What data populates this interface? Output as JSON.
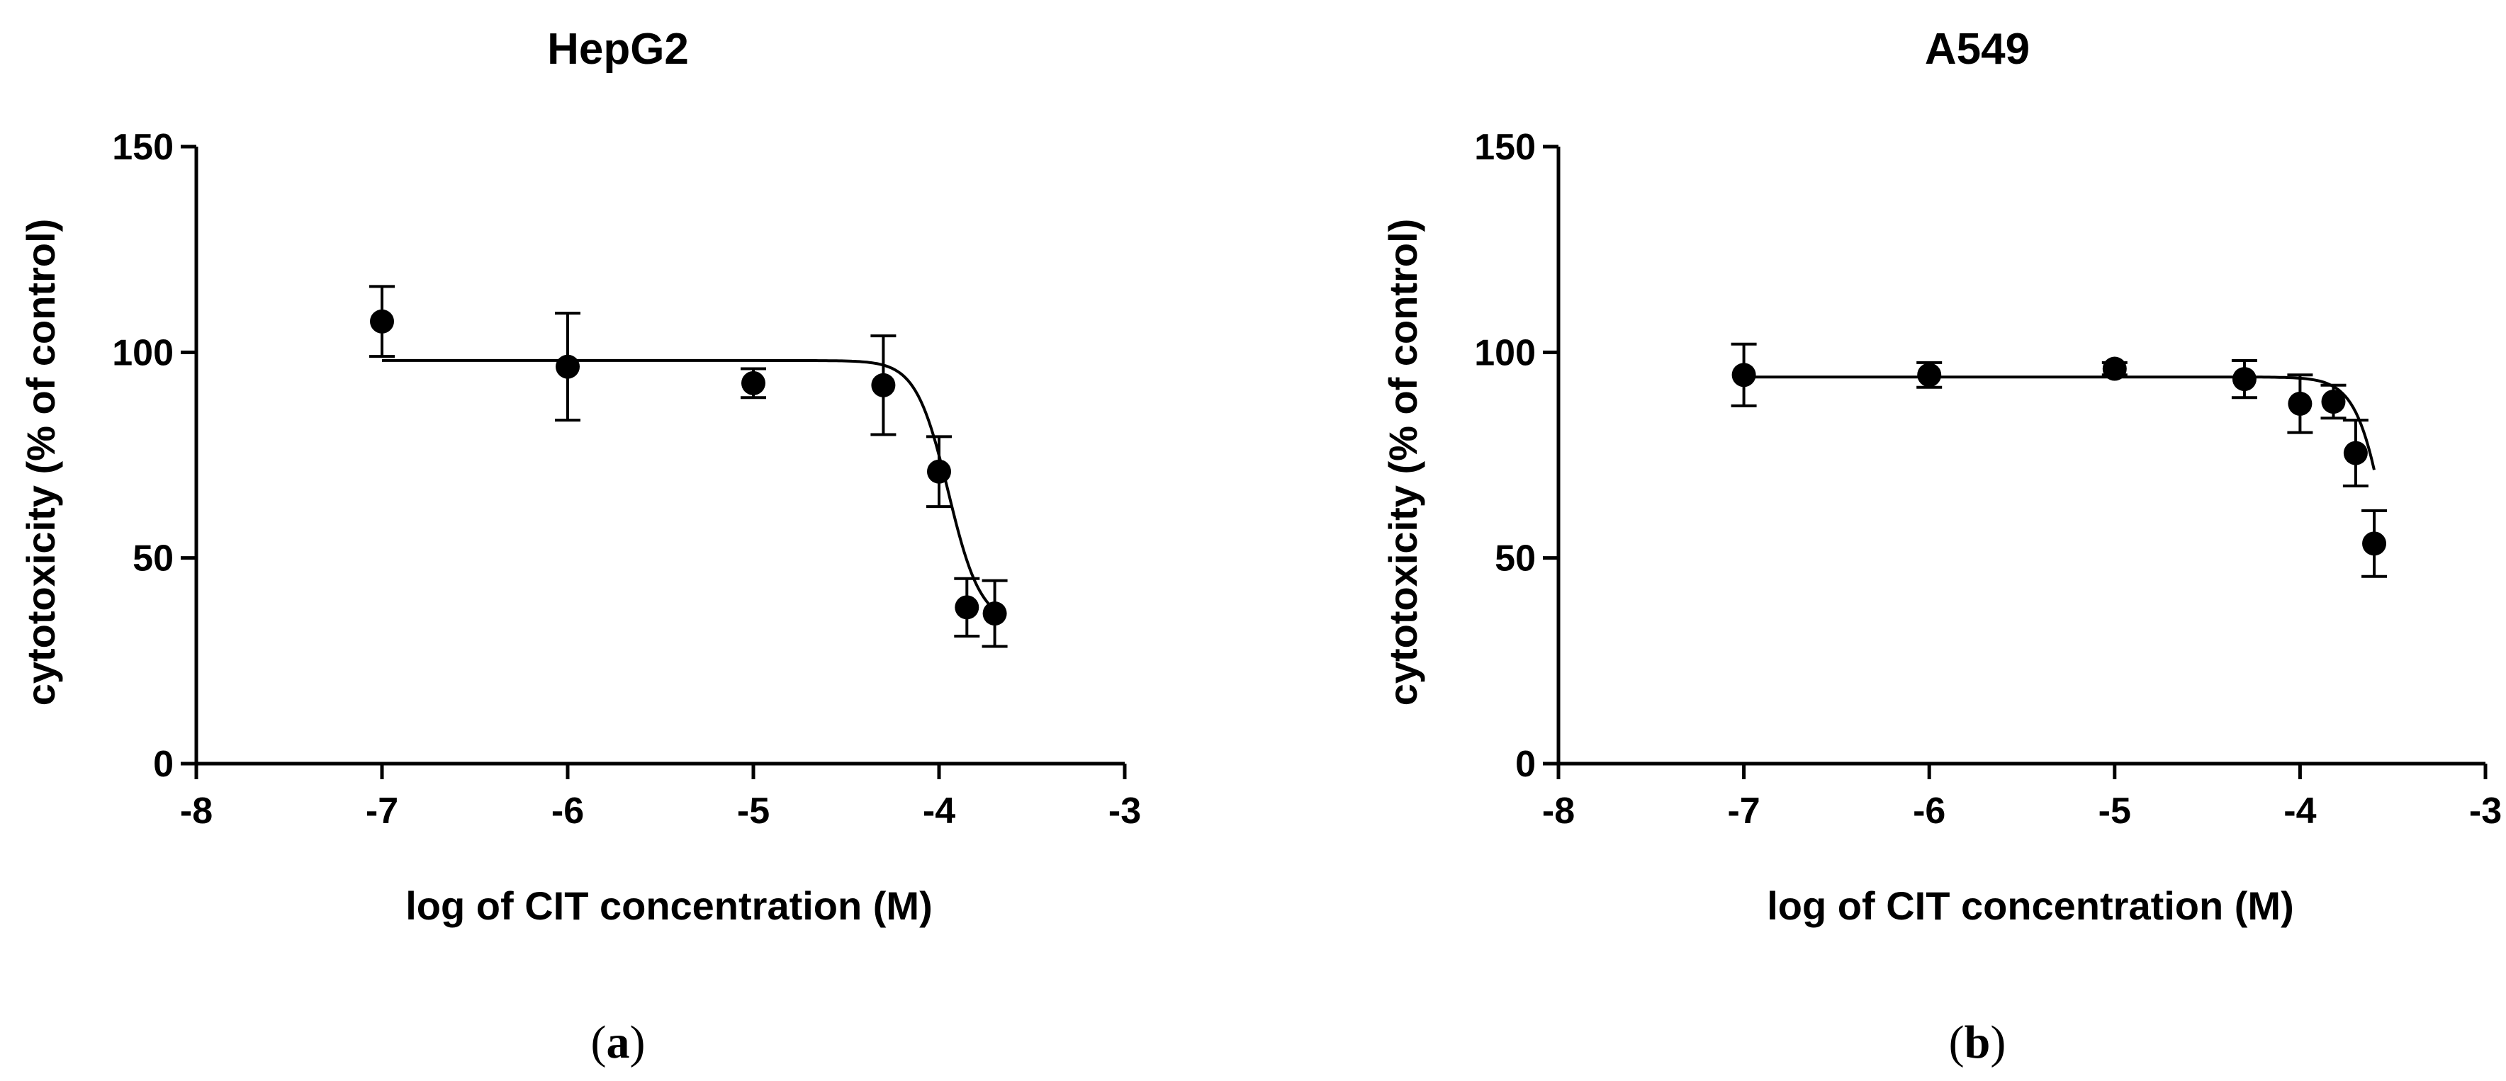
{
  "chart_data": [
    {
      "type": "scatter",
      "title": "HepG2",
      "xlabel": "log of CIT concentration (M)",
      "ylabel": "cytotoxicity (% of control)",
      "xlim": [
        -8,
        -3
      ],
      "ylim": [
        0,
        150
      ],
      "xticks": [
        "-8",
        "-7",
        "-6",
        "-5",
        "-4",
        "-3"
      ],
      "yticks": [
        "0",
        "50",
        "100",
        "150"
      ],
      "grid": false,
      "points": [
        {
          "x": -7.0,
          "y": 107.5,
          "err": 8.5
        },
        {
          "x": -6.0,
          "y": 96.5,
          "err": 13.0
        },
        {
          "x": -5.0,
          "y": 92.5,
          "err": 3.5
        },
        {
          "x": -4.3,
          "y": 92.0,
          "err": 12.0
        },
        {
          "x": -4.0,
          "y": 71.0,
          "err": 8.5
        },
        {
          "x": -3.85,
          "y": 38.0,
          "err": 7.0
        },
        {
          "x": -3.7,
          "y": 36.5,
          "err": 8.0
        }
      ],
      "fit": {
        "top": 98,
        "bottom": 34,
        "logEC50": -3.95,
        "hill": -5,
        "x_range": [
          -7,
          -3.7
        ]
      },
      "caption_letter": "a"
    },
    {
      "type": "scatter",
      "title": "A549",
      "xlabel": "log of CIT concentration (M)",
      "ylabel": "cytotoxicity (% of control)",
      "xlim": [
        -8,
        -3
      ],
      "ylim": [
        0,
        150
      ],
      "xticks": [
        "-8",
        "-7",
        "-6",
        "-5",
        "-4",
        "-3"
      ],
      "yticks": [
        "0",
        "50",
        "100",
        "150"
      ],
      "grid": false,
      "points": [
        {
          "x": -7.0,
          "y": 94.5,
          "err": 7.5
        },
        {
          "x": -6.0,
          "y": 94.5,
          "err": 3.0
        },
        {
          "x": -5.0,
          "y": 96.0,
          "err": 1.5
        },
        {
          "x": -4.3,
          "y": 93.5,
          "err": 4.5
        },
        {
          "x": -4.0,
          "y": 87.5,
          "err": 7.0
        },
        {
          "x": -3.82,
          "y": 88.0,
          "err": 4.0
        },
        {
          "x": -3.7,
          "y": 75.5,
          "err": 8.0
        },
        {
          "x": -3.6,
          "y": 53.5,
          "err": 8.0
        }
      ],
      "fit": {
        "top": 94,
        "bottom": 0,
        "logEC50": -3.5,
        "hill": -5,
        "x_range": [
          -7,
          -3.6
        ]
      },
      "caption_letter": "b"
    }
  ]
}
